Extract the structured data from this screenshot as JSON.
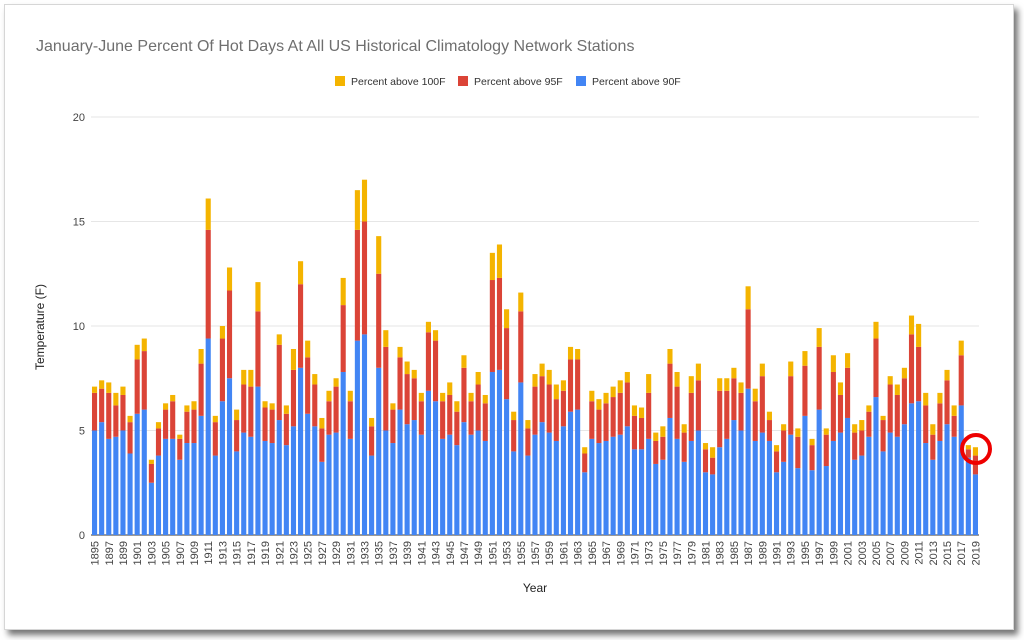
{
  "chart_data": {
    "type": "bar",
    "stacked": true,
    "title": "January-June Percent Of Hot Days At All US Historical Climatology Network Stations",
    "xlabel": "Year",
    "ylabel": "Temperature (F)",
    "ylim": [
      0,
      20
    ],
    "yticks": [
      "0",
      "5",
      "10",
      "15",
      "20"
    ],
    "legend_position": "top",
    "grid": true,
    "annotation": "red circle highlighting the 2019 bar",
    "colors": {
      "p90": "#4285f4",
      "p95": "#db4437",
      "p100": "#f4b400",
      "circle": "#ee0000",
      "grid": "#e6e6e6"
    },
    "categories": [
      "1895",
      "1896",
      "1897",
      "1898",
      "1899",
      "1900",
      "1901",
      "1902",
      "1903",
      "1904",
      "1905",
      "1906",
      "1907",
      "1908",
      "1909",
      "1910",
      "1911",
      "1912",
      "1913",
      "1914",
      "1915",
      "1916",
      "1917",
      "1918",
      "1919",
      "1920",
      "1921",
      "1922",
      "1923",
      "1924",
      "1925",
      "1926",
      "1927",
      "1928",
      "1929",
      "1930",
      "1931",
      "1932",
      "1933",
      "1934",
      "1935",
      "1936",
      "1937",
      "1938",
      "1939",
      "1940",
      "1941",
      "1942",
      "1943",
      "1944",
      "1945",
      "1946",
      "1947",
      "1948",
      "1949",
      "1950",
      "1951",
      "1952",
      "1953",
      "1954",
      "1955",
      "1956",
      "1957",
      "1958",
      "1959",
      "1960",
      "1961",
      "1962",
      "1963",
      "1964",
      "1965",
      "1966",
      "1967",
      "1968",
      "1969",
      "1970",
      "1971",
      "1972",
      "1973",
      "1974",
      "1975",
      "1976",
      "1977",
      "1978",
      "1979",
      "1980",
      "1981",
      "1982",
      "1983",
      "1984",
      "1985",
      "1986",
      "1987",
      "1988",
      "1989",
      "1990",
      "1991",
      "1992",
      "1993",
      "1994",
      "1995",
      "1996",
      "1997",
      "1998",
      "1999",
      "2000",
      "2001",
      "2002",
      "2003",
      "2004",
      "2005",
      "2006",
      "2007",
      "2008",
      "2009",
      "2010",
      "2011",
      "2012",
      "2013",
      "2014",
      "2015",
      "2016",
      "2017",
      "2018",
      "2019"
    ],
    "series": [
      {
        "name": "Percent above 90F",
        "values": [
          5.0,
          5.4,
          4.6,
          4.7,
          5.0,
          3.9,
          5.8,
          6.0,
          2.5,
          3.8,
          4.6,
          4.6,
          3.6,
          4.4,
          4.4,
          5.7,
          9.4,
          3.8,
          6.4,
          7.5,
          4.0,
          4.9,
          4.7,
          7.1,
          4.5,
          4.4,
          5.5,
          4.3,
          5.2,
          8.0,
          5.8,
          5.2,
          3.5,
          4.8,
          4.9,
          7.8,
          4.6,
          9.3,
          9.6,
          3.8,
          8.0,
          5.0,
          4.4,
          6.0,
          5.3,
          5.5,
          4.8,
          6.9,
          6.4,
          4.6,
          4.8,
          4.3,
          5.4,
          4.8,
          5.0,
          4.5,
          7.8,
          7.9,
          6.5,
          4.0,
          7.3,
          3.8,
          4.8,
          5.4,
          4.9,
          4.5,
          5.2,
          5.9,
          6.0,
          3.0,
          4.6,
          4.4,
          4.5,
          4.7,
          4.8,
          5.2,
          4.1,
          4.1,
          4.6,
          3.4,
          3.6,
          5.6,
          4.6,
          3.5,
          4.5,
          5.0,
          3.0,
          2.9,
          4.2,
          4.6,
          5.5,
          5.0,
          7.0,
          4.5,
          4.9,
          4.5,
          3.0,
          3.5,
          4.8,
          3.2,
          5.7,
          3.1,
          6.0,
          3.3,
          4.5,
          4.9,
          5.6,
          3.6,
          3.8,
          4.7,
          6.6,
          4.0,
          4.9,
          4.7,
          5.3,
          6.3,
          6.4,
          4.4,
          3.6,
          4.5,
          5.3,
          4.7,
          6.2,
          3.7,
          2.9
        ]
      },
      {
        "name": "Percent above 95F",
        "values": [
          1.8,
          1.6,
          2.2,
          1.5,
          1.7,
          1.5,
          2.6,
          2.8,
          0.9,
          1.3,
          1.4,
          1.8,
          1.0,
          1.5,
          1.6,
          2.5,
          5.2,
          1.6,
          3.0,
          4.2,
          1.5,
          2.3,
          2.4,
          3.6,
          1.6,
          1.6,
          3.6,
          1.5,
          2.7,
          4.0,
          2.7,
          2.0,
          1.6,
          1.6,
          2.2,
          3.2,
          1.8,
          5.3,
          5.4,
          1.4,
          4.5,
          4.0,
          1.6,
          2.5,
          2.4,
          2.0,
          1.6,
          2.8,
          2.9,
          1.8,
          1.9,
          1.6,
          2.6,
          1.6,
          2.2,
          1.8,
          4.4,
          4.4,
          3.4,
          1.5,
          3.4,
          1.3,
          2.3,
          2.2,
          2.3,
          2.0,
          1.7,
          2.5,
          2.4,
          0.9,
          1.8,
          1.6,
          1.8,
          1.9,
          2.0,
          2.1,
          1.6,
          1.5,
          2.2,
          1.1,
          1.1,
          2.6,
          2.5,
          1.4,
          2.3,
          2.4,
          1.1,
          0.8,
          2.7,
          2.3,
          2.0,
          1.8,
          3.8,
          1.9,
          2.7,
          1.0,
          1.0,
          1.5,
          2.8,
          1.5,
          2.4,
          1.2,
          3.0,
          1.5,
          3.3,
          1.8,
          2.4,
          1.3,
          1.2,
          1.2,
          2.8,
          1.5,
          2.3,
          2.0,
          2.2,
          3.3,
          2.6,
          1.8,
          1.2,
          1.8,
          2.1,
          1.0,
          2.4,
          0.4,
          0.9
        ]
      },
      {
        "name": "Percent above 100F",
        "values": [
          0.3,
          0.4,
          0.5,
          0.6,
          0.4,
          0.3,
          0.7,
          0.6,
          0.2,
          0.3,
          0.3,
          0.3,
          0.2,
          0.3,
          0.4,
          0.7,
          1.5,
          0.3,
          0.6,
          1.1,
          0.5,
          0.7,
          0.8,
          1.4,
          0.3,
          0.3,
          0.5,
          0.4,
          1.0,
          1.1,
          0.8,
          0.5,
          0.5,
          0.5,
          0.4,
          1.3,
          0.5,
          1.9,
          2.0,
          0.4,
          1.8,
          0.8,
          0.3,
          0.5,
          0.6,
          0.4,
          0.4,
          0.5,
          0.5,
          0.4,
          0.6,
          0.5,
          0.6,
          0.4,
          0.6,
          0.4,
          1.3,
          1.6,
          0.9,
          0.4,
          0.9,
          0.4,
          0.6,
          0.6,
          0.7,
          0.7,
          0.5,
          0.6,
          0.5,
          0.3,
          0.5,
          0.5,
          0.5,
          0.5,
          0.6,
          0.5,
          0.5,
          0.5,
          0.9,
          0.4,
          0.5,
          0.7,
          0.7,
          0.4,
          0.8,
          0.8,
          0.3,
          0.5,
          0.6,
          0.6,
          0.5,
          0.5,
          1.1,
          0.6,
          0.6,
          0.4,
          0.3,
          0.3,
          0.7,
          0.4,
          0.7,
          0.3,
          0.9,
          0.3,
          0.8,
          0.6,
          0.7,
          0.4,
          0.5,
          0.3,
          0.8,
          0.2,
          0.4,
          0.5,
          0.5,
          0.9,
          1.1,
          0.6,
          0.5,
          0.5,
          0.5,
          0.5,
          0.7,
          0.2,
          0.4
        ]
      }
    ]
  }
}
